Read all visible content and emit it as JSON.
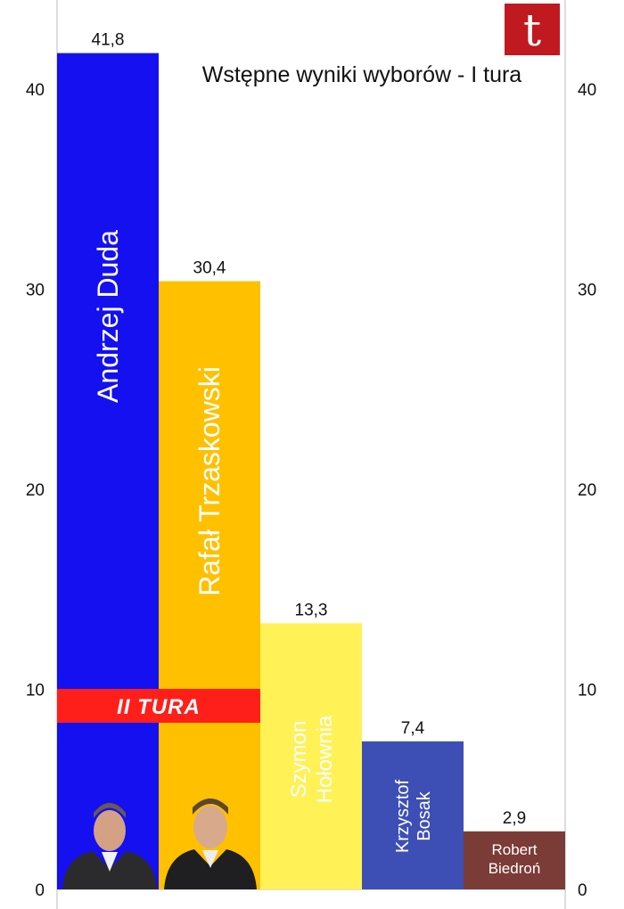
{
  "chart_data": {
    "type": "bar",
    "title": "Wstępne wyniki wyborów - I tura",
    "xlabel": "",
    "ylabel": "",
    "ylim": [
      0,
      45
    ],
    "yticks": [
      "0",
      "10",
      "20",
      "30",
      "40"
    ],
    "categories": [
      "Andrzej Duda",
      "Rafał Trzaskowski",
      "Szymon Hołownia",
      "Krzysztof Bosak",
      "Robert Biedroń"
    ],
    "value_labels": [
      "41,8",
      "30,4",
      "13,3",
      "7,4",
      "2,9"
    ],
    "values": [
      41.8,
      30.4,
      13.3,
      7.4,
      2.9
    ],
    "colors": [
      "#1410f0",
      "#ffc000",
      "#fff156",
      "#3d4fb5",
      "#7b3b36"
    ],
    "label_colors": [
      "#ffffff",
      "#ffffff",
      "#ffffff",
      "#ffffff",
      "#ffffff"
    ],
    "grid": false,
    "legend": "none"
  },
  "banner": {
    "text": "II TURA",
    "color": "#ff1f1a"
  },
  "logo": {
    "letter": "t",
    "color": "#c0191f"
  },
  "portraits": [
    "portrait-andrzej-duda",
    "portrait-rafal-trzaskowski"
  ]
}
